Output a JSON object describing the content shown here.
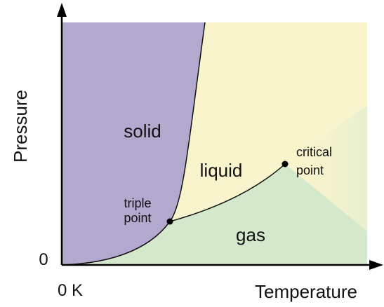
{
  "axes": {
    "y_label": "Pressure",
    "x_label": "Temperature",
    "y_origin": "0",
    "x_origin": "0 K"
  },
  "regions": {
    "solid": "solid",
    "liquid": "liquid",
    "gas": "gas"
  },
  "points": {
    "triple": [
      "triple",
      "point"
    ],
    "critical": [
      "critical",
      "point"
    ]
  }
}
